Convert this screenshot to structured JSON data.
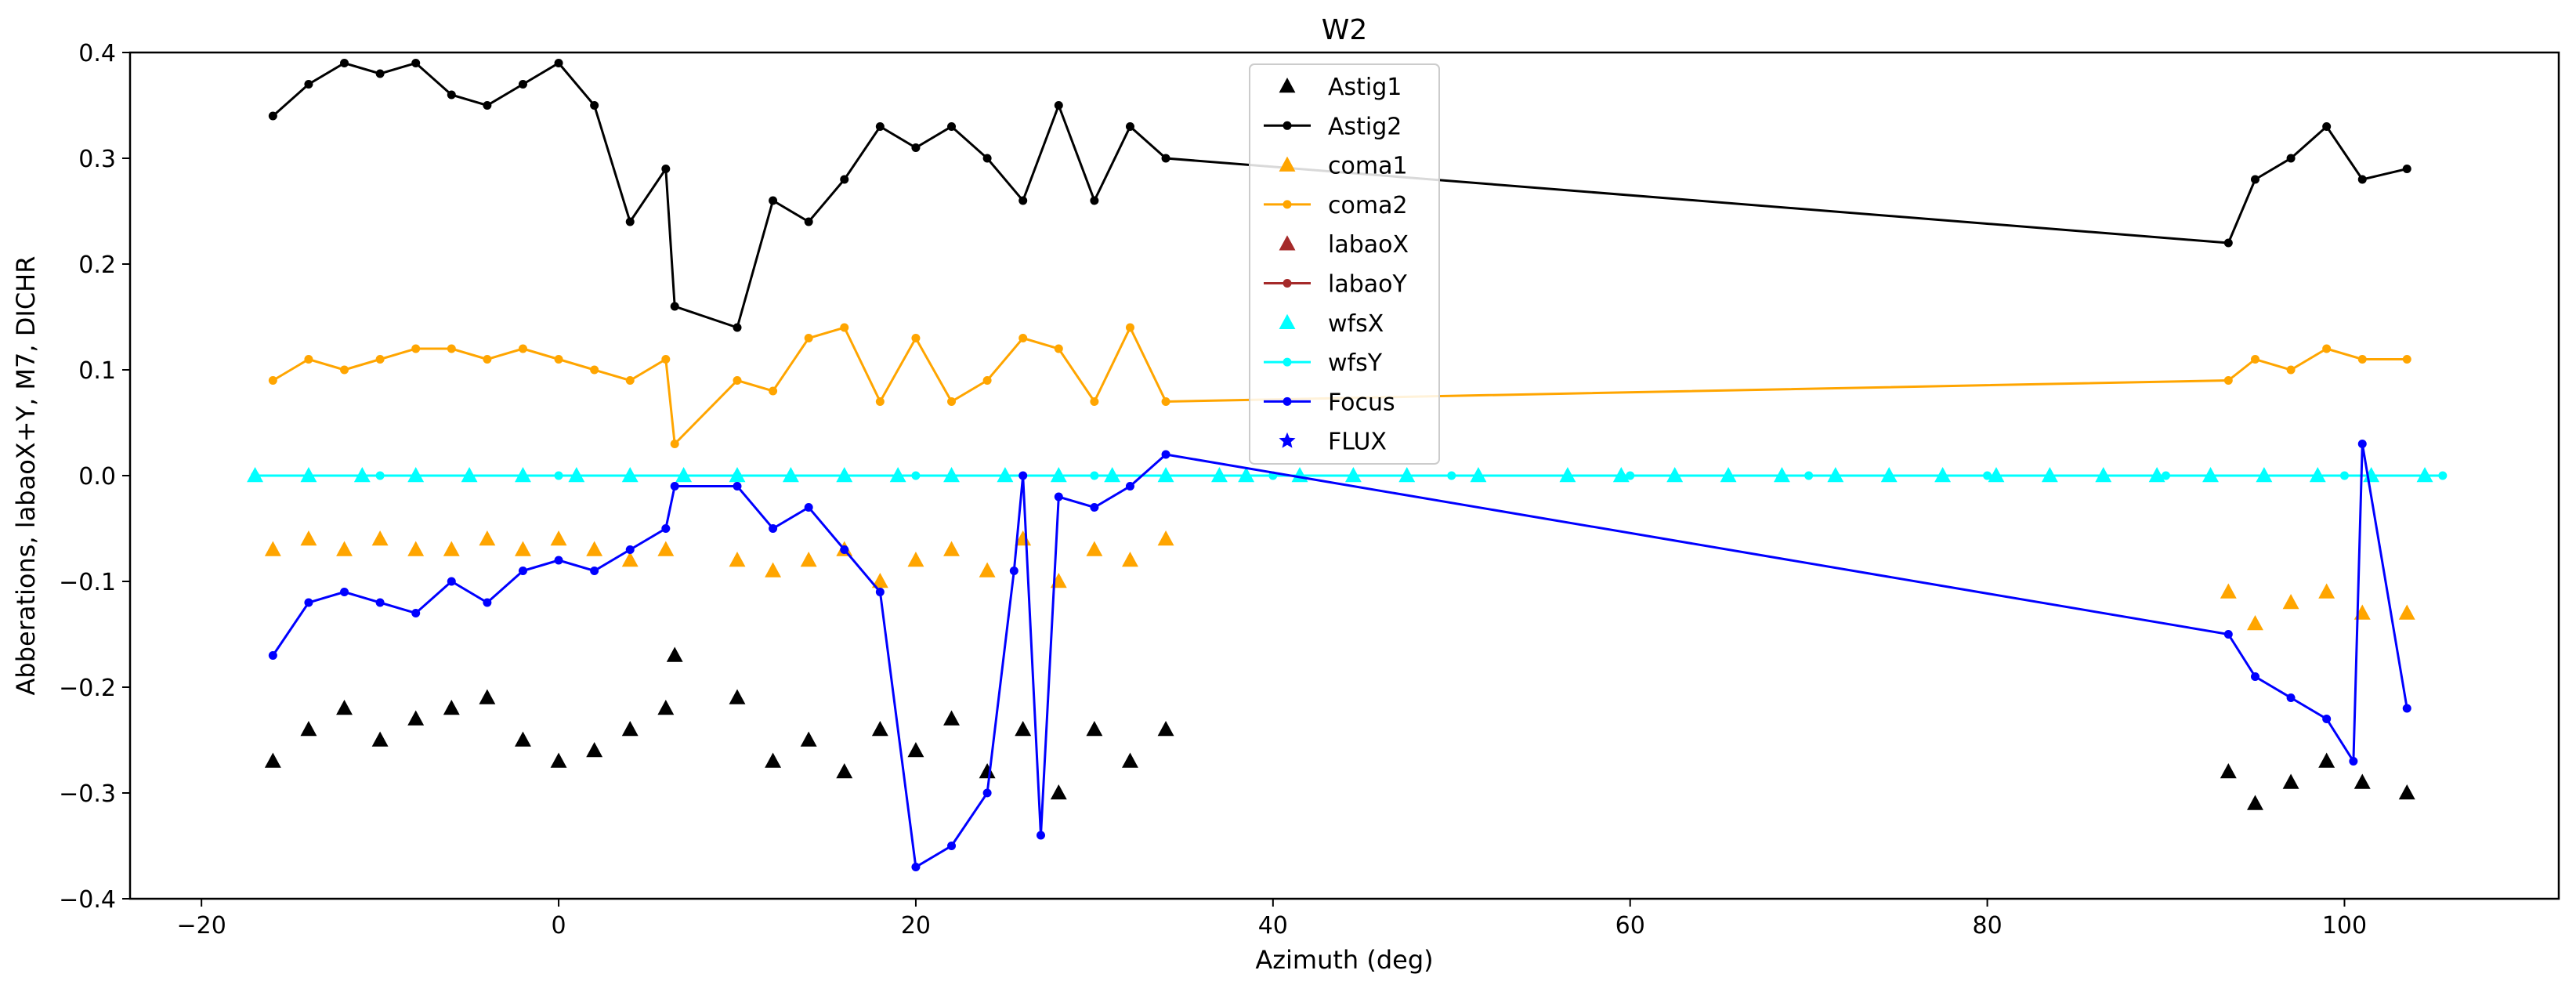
{
  "chart_data": {
    "type": "scatter",
    "title": "W2",
    "xlabel": "Azimuth (deg)",
    "ylabel": "Abberations, labaoX+Y, M7, DICHR",
    "xlim": [
      -24,
      112
    ],
    "ylim": [
      -0.4,
      0.4
    ],
    "xticks": [
      -20,
      0,
      20,
      40,
      60,
      80,
      100
    ],
    "yticks": [
      -0.4,
      -0.3,
      -0.2,
      -0.1,
      0.0,
      0.1,
      0.2,
      0.3,
      0.4
    ],
    "xtick_labels": [
      "−20",
      "0",
      "20",
      "40",
      "60",
      "80",
      "100"
    ],
    "ytick_labels": [
      "−0.4",
      "−0.3",
      "−0.2",
      "−0.1",
      "0.0",
      "0.1",
      "0.2",
      "0.3",
      "0.4"
    ],
    "grid": false,
    "legend_position": "top-center",
    "series": [
      {
        "name": "Astig1",
        "color": "#000000",
        "marker": "triangle",
        "line": false,
        "x": [
          -16,
          -14,
          -12,
          -10,
          -8,
          -6,
          -4,
          -2,
          0,
          2,
          4,
          6,
          6.5,
          10,
          12,
          14,
          16,
          18,
          20,
          22,
          24,
          26,
          28,
          30,
          32,
          34,
          93.5,
          95,
          97,
          99,
          101,
          103.5
        ],
        "y": [
          -0.27,
          -0.24,
          -0.22,
          -0.25,
          -0.23,
          -0.22,
          -0.21,
          -0.25,
          -0.27,
          -0.26,
          -0.24,
          -0.22,
          -0.17,
          -0.21,
          -0.27,
          -0.25,
          -0.28,
          -0.24,
          -0.26,
          -0.23,
          -0.28,
          -0.24,
          -0.3,
          -0.24,
          -0.27,
          -0.24,
          -0.28,
          -0.31,
          -0.29,
          -0.27,
          -0.29,
          -0.3
        ]
      },
      {
        "name": "Astig2",
        "color": "#000000",
        "marker": "dot",
        "line": true,
        "x": [
          -16,
          -14,
          -12,
          -10,
          -8,
          -6,
          -4,
          -2,
          0,
          2,
          4,
          6,
          6.5,
          10,
          12,
          14,
          16,
          18,
          20,
          22,
          24,
          26,
          28,
          30,
          32,
          34,
          93.5,
          95,
          97,
          99,
          101,
          103.5
        ],
        "y": [
          0.34,
          0.37,
          0.39,
          0.38,
          0.39,
          0.36,
          0.35,
          0.37,
          0.39,
          0.35,
          0.24,
          0.29,
          0.16,
          0.14,
          0.26,
          0.24,
          0.28,
          0.33,
          0.31,
          0.33,
          0.3,
          0.26,
          0.35,
          0.26,
          0.33,
          0.3,
          0.22,
          0.28,
          0.3,
          0.33,
          0.28,
          0.29
        ]
      },
      {
        "name": "coma1",
        "color": "#ffa500",
        "marker": "triangle",
        "line": false,
        "x": [
          -16,
          -14,
          -12,
          -10,
          -8,
          -6,
          -4,
          -2,
          0,
          2,
          4,
          6,
          10,
          12,
          14,
          16,
          18,
          20,
          22,
          24,
          26,
          28,
          30,
          32,
          34,
          93.5,
          95,
          97,
          99,
          101,
          103.5
        ],
        "y": [
          -0.07,
          -0.06,
          -0.07,
          -0.06,
          -0.07,
          -0.07,
          -0.06,
          -0.07,
          -0.06,
          -0.07,
          -0.08,
          -0.07,
          -0.08,
          -0.09,
          -0.08,
          -0.07,
          -0.1,
          -0.08,
          -0.07,
          -0.09,
          -0.06,
          -0.1,
          -0.07,
          -0.08,
          -0.06,
          -0.11,
          -0.14,
          -0.12,
          -0.11,
          -0.13,
          -0.13
        ]
      },
      {
        "name": "coma2",
        "color": "#ffa500",
        "marker": "dot",
        "line": true,
        "x": [
          -16,
          -14,
          -12,
          -10,
          -8,
          -6,
          -4,
          -2,
          0,
          2,
          4,
          6,
          6.5,
          10,
          12,
          14,
          16,
          18,
          20,
          22,
          24,
          26,
          28,
          30,
          32,
          34,
          93.5,
          95,
          97,
          99,
          101,
          103.5
        ],
        "y": [
          0.09,
          0.11,
          0.1,
          0.11,
          0.12,
          0.12,
          0.11,
          0.12,
          0.11,
          0.1,
          0.09,
          0.11,
          0.03,
          0.09,
          0.08,
          0.13,
          0.14,
          0.07,
          0.13,
          0.07,
          0.09,
          0.13,
          0.12,
          0.07,
          0.14,
          0.07,
          0.09,
          0.11,
          0.1,
          0.12,
          0.11,
          0.11
        ]
      },
      {
        "name": "labaoX",
        "color": "#a52a2a",
        "marker": "triangle",
        "line": false,
        "x": [],
        "y": []
      },
      {
        "name": "labaoY",
        "color": "#a52a2a",
        "marker": "dot",
        "line": true,
        "x": [],
        "y": []
      },
      {
        "name": "wfsX",
        "color": "#00ffff",
        "marker": "triangle",
        "line": false,
        "x": [
          -17,
          -14,
          -11,
          -8,
          -5,
          -2,
          1,
          4,
          7,
          10,
          13,
          16,
          19,
          22,
          25,
          28,
          31,
          34,
          37,
          38.5,
          41.5,
          44.5,
          47.5,
          51.5,
          56.5,
          59.5,
          62.5,
          65.5,
          68.5,
          71.5,
          74.5,
          77.5,
          80.5,
          83.5,
          86.5,
          89.5,
          92.5,
          95.5,
          98.5,
          101.5,
          104.5
        ],
        "y": [
          0,
          0,
          0,
          0,
          0,
          0,
          0,
          0,
          0,
          0,
          0,
          0,
          0,
          0,
          0,
          0,
          0,
          0,
          0,
          0,
          0,
          0,
          0,
          0,
          0,
          0,
          0,
          0,
          0,
          0,
          0,
          0,
          0,
          0,
          0,
          0,
          0,
          0,
          0,
          0,
          0
        ]
      },
      {
        "name": "wfsY",
        "color": "#00ffff",
        "marker": "dot",
        "line": true,
        "x": [
          -17,
          -10,
          0,
          10,
          20,
          30,
          40,
          50,
          60,
          70,
          80,
          90,
          100,
          105.5
        ],
        "y": [
          0,
          0,
          0,
          0,
          0,
          0,
          0,
          0,
          0,
          0,
          0,
          0,
          0,
          0
        ]
      },
      {
        "name": "Focus",
        "color": "#0000ff",
        "marker": "dot",
        "line": true,
        "x": [
          -16,
          -14,
          -12,
          -10,
          -8,
          -6,
          -4,
          -2,
          0,
          2,
          4,
          6,
          6.5,
          10,
          12,
          14,
          16,
          18,
          20,
          22,
          24,
          25.5,
          26,
          27,
          28,
          30,
          32,
          34,
          93.5,
          95,
          97,
          99,
          100.5,
          101,
          103.5
        ],
        "y": [
          -0.17,
          -0.12,
          -0.11,
          -0.12,
          -0.13,
          -0.1,
          -0.12,
          -0.09,
          -0.08,
          -0.09,
          -0.07,
          -0.05,
          -0.01,
          -0.01,
          -0.05,
          -0.03,
          -0.07,
          -0.11,
          -0.37,
          -0.35,
          -0.3,
          -0.09,
          0.0,
          -0.34,
          -0.02,
          -0.03,
          -0.01,
          0.02,
          -0.15,
          -0.19,
          -0.21,
          -0.23,
          -0.27,
          0.03,
          -0.22
        ]
      },
      {
        "name": "FLUX",
        "color": "#0000ff",
        "marker": "star",
        "line": false,
        "x": [],
        "y": []
      }
    ]
  }
}
